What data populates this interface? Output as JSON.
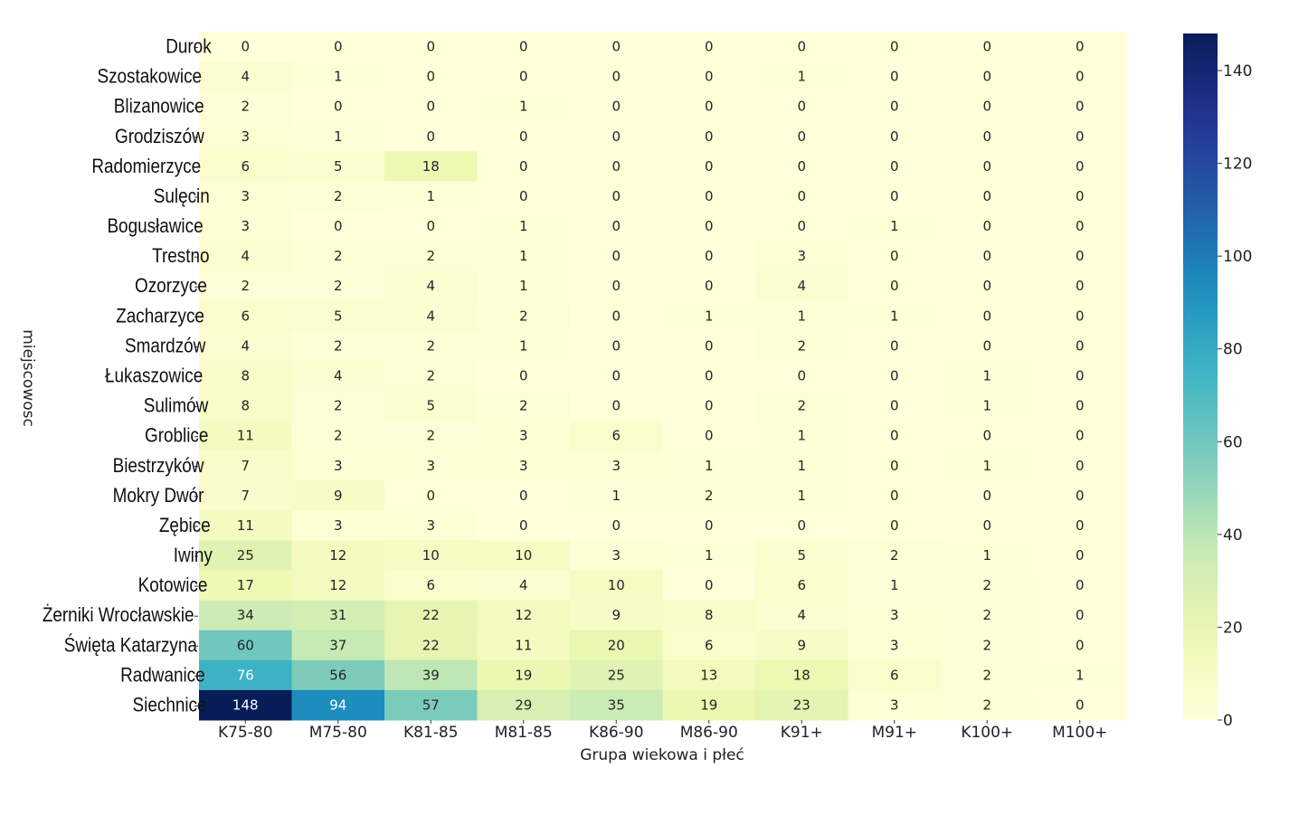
{
  "chart_data": {
    "type": "heatmap",
    "title": "",
    "xlabel": "Grupa wiekowa i płeć",
    "ylabel": "miejscowosc",
    "colormap": "YlGnBu",
    "vmin": 0,
    "vmax": 148,
    "colorbar_ticks": [
      0,
      20,
      40,
      60,
      80,
      100,
      120,
      140
    ],
    "columns": [
      "K75-80",
      "M75-80",
      "K81-85",
      "M81-85",
      "K86-90",
      "M86-90",
      "K91+",
      "M91+",
      "K100+",
      "M100+"
    ],
    "rows": [
      "Durok",
      "Szostakowice",
      "Blizanowice",
      "Grodziszów",
      "Radomierzyce",
      "Sulęcin",
      "Bogusławice",
      "Trestno",
      "Ozorzyce",
      "Zacharzyce",
      "Smardzów",
      "Łukaszowice",
      "Sulimów",
      "Groblice",
      "Biestrzyków",
      "Mokry Dwór",
      "Zębice",
      "Iwiny",
      "Kotowice",
      "Żerniki Wrocławskie",
      "Święta Katarzyna",
      "Radwanice",
      "Siechnice"
    ],
    "values": [
      [
        0,
        0,
        0,
        0,
        0,
        0,
        0,
        0,
        0,
        0
      ],
      [
        4,
        1,
        0,
        0,
        0,
        0,
        1,
        0,
        0,
        0
      ],
      [
        2,
        0,
        0,
        1,
        0,
        0,
        0,
        0,
        0,
        0
      ],
      [
        3,
        1,
        0,
        0,
        0,
        0,
        0,
        0,
        0,
        0
      ],
      [
        6,
        5,
        18,
        0,
        0,
        0,
        0,
        0,
        0,
        0
      ],
      [
        3,
        2,
        1,
        0,
        0,
        0,
        0,
        0,
        0,
        0
      ],
      [
        3,
        0,
        0,
        1,
        0,
        0,
        0,
        1,
        0,
        0
      ],
      [
        4,
        2,
        2,
        1,
        0,
        0,
        3,
        0,
        0,
        0
      ],
      [
        2,
        2,
        4,
        1,
        0,
        0,
        4,
        0,
        0,
        0
      ],
      [
        6,
        5,
        4,
        2,
        0,
        1,
        1,
        1,
        0,
        0
      ],
      [
        4,
        2,
        2,
        1,
        0,
        0,
        2,
        0,
        0,
        0
      ],
      [
        8,
        4,
        2,
        0,
        0,
        0,
        0,
        0,
        1,
        0
      ],
      [
        8,
        2,
        5,
        2,
        0,
        0,
        2,
        0,
        1,
        0
      ],
      [
        11,
        2,
        2,
        3,
        6,
        0,
        1,
        0,
        0,
        0
      ],
      [
        7,
        3,
        3,
        3,
        3,
        1,
        1,
        0,
        1,
        0
      ],
      [
        7,
        9,
        0,
        0,
        1,
        2,
        1,
        0,
        0,
        0
      ],
      [
        11,
        3,
        3,
        0,
        0,
        0,
        0,
        0,
        0,
        0
      ],
      [
        25,
        12,
        10,
        10,
        3,
        1,
        5,
        2,
        1,
        0
      ],
      [
        17,
        12,
        6,
        4,
        10,
        0,
        6,
        1,
        2,
        0
      ],
      [
        34,
        31,
        22,
        12,
        9,
        8,
        4,
        3,
        2,
        0
      ],
      [
        60,
        37,
        22,
        11,
        20,
        6,
        9,
        3,
        2,
        0
      ],
      [
        76,
        56,
        39,
        19,
        25,
        13,
        18,
        6,
        2,
        1
      ],
      [
        148,
        94,
        57,
        29,
        35,
        19,
        23,
        3,
        2,
        0
      ]
    ]
  }
}
